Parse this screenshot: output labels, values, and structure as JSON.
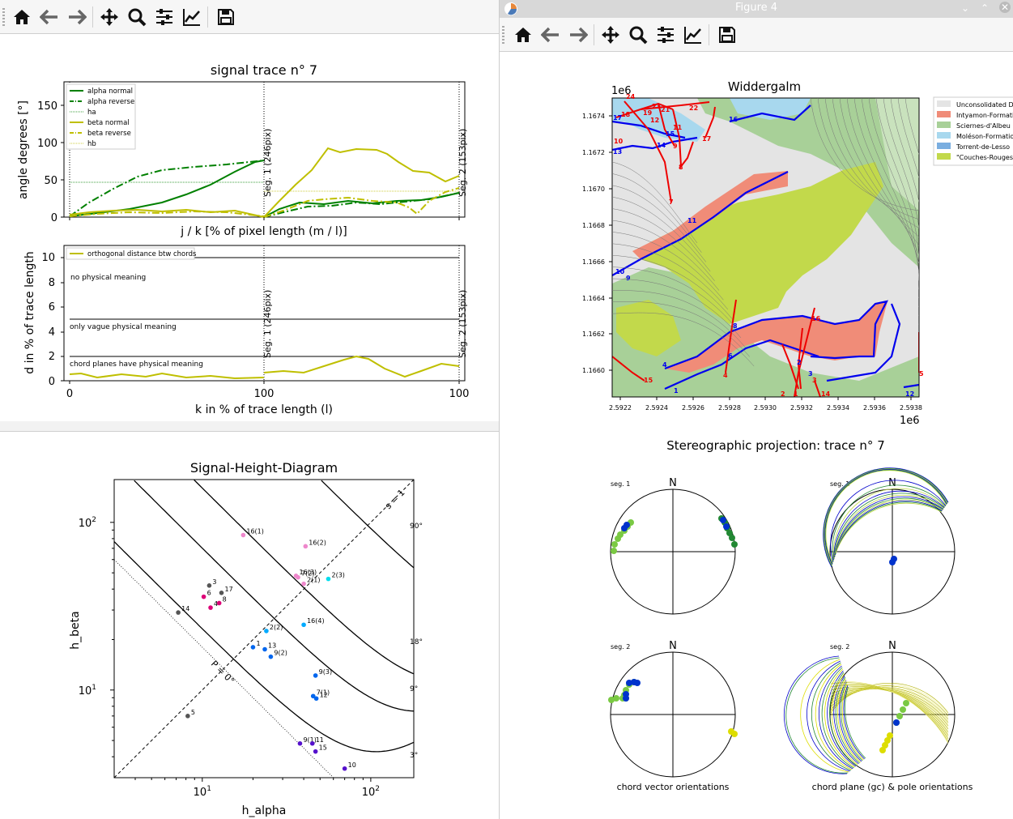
{
  "colors": {
    "green": "#008000",
    "yellow": "#bfbf00",
    "blue": "#0000ee",
    "red": "#ee0000",
    "salmon": "#f08c78",
    "lime": "#c2d94b",
    "grey": "#e4e4e4"
  },
  "window_left": {
    "toolbar": [
      "home-icon",
      "back-icon",
      "forward-icon",
      "pan-icon",
      "zoom-icon",
      "configure-icon",
      "edit-axis-icon",
      "save-icon"
    ],
    "top_plot": {
      "title": "signal trace n° 7",
      "ylabel": "angle degrees [°]",
      "xlabel": "j / k [% of pixel length (m / l)]",
      "yticks": [
        "150",
        "100",
        "50",
        "0"
      ],
      "seg1": "Seg. 1 (246pix)",
      "seg2": "Seg. 2 (153pix)",
      "legend": [
        "alpha normal",
        "alpha reverse",
        "ha",
        "beta normal",
        "beta reverse",
        "hb"
      ]
    },
    "bottom_plot": {
      "ylabel": "d in % of trace length",
      "xlabel": "k in % of trace length (l)",
      "yticks": [
        "10",
        "8",
        "6",
        "4",
        "2",
        "0"
      ],
      "xticks": [
        "0",
        "100",
        "100"
      ],
      "legend": "orthogonal distance btw chords",
      "band1": "no physical meaning",
      "band2": "only vague physical meaning",
      "band3": "chord planes have physical meaning",
      "seg1": "Seg. 1 (246pix)",
      "seg2": "Seg. 2 (153pix)"
    }
  },
  "window_bottom": {
    "title": "Signal-Height-Diagram",
    "xlabel": "h_alpha",
    "ylabel": "h_beta",
    "x_ticks": [
      "10^1",
      "10^2"
    ],
    "y_ticks": [
      "10^2",
      "10^1"
    ],
    "s_label": "s = 1",
    "p_label": "P = 0°",
    "curve_labels": [
      "90°",
      "18°",
      "9°",
      "3°"
    ],
    "chart_data": {
      "type": "scatter",
      "xscale": "log",
      "yscale": "log",
      "xlim": [
        3,
        180
      ],
      "ylim": [
        3,
        180
      ],
      "points": [
        {
          "label": "16(1)",
          "x": 17.5,
          "y": 84,
          "color": "#ee88cc"
        },
        {
          "label": "16(2)",
          "x": 41,
          "y": 72,
          "color": "#ee88cc"
        },
        {
          "label": "16(3)",
          "x": 36,
          "y": 48,
          "color": "#ee88cc"
        },
        {
          "label": "7(2)",
          "x": 37,
          "y": 47,
          "color": "#ee88cc"
        },
        {
          "label": "2(1)",
          "x": 40,
          "y": 43,
          "color": "#ee88cc"
        },
        {
          "label": "2(3)",
          "x": 56,
          "y": 46,
          "color": "#00ddee"
        },
        {
          "label": "3",
          "x": 11,
          "y": 42,
          "color": "#555555"
        },
        {
          "label": "17",
          "x": 13,
          "y": 38,
          "color": "#555555"
        },
        {
          "label": "6",
          "x": 10.2,
          "y": 36,
          "color": "#dd0077"
        },
        {
          "label": "8",
          "x": 12.6,
          "y": 33,
          "color": "#dd0077"
        },
        {
          "label": "4",
          "x": 11.2,
          "y": 31,
          "color": "#dd0077"
        },
        {
          "label": "14",
          "x": 7.2,
          "y": 29,
          "color": "#555555"
        },
        {
          "label": "16(4)",
          "x": 40,
          "y": 24.5,
          "color": "#00aaff"
        },
        {
          "label": "2(2)",
          "x": 24,
          "y": 22.5,
          "color": "#00aaff"
        },
        {
          "label": "1",
          "x": 20,
          "y": 18,
          "color": "#0066ee"
        },
        {
          "label": "13",
          "x": 23.5,
          "y": 17.5,
          "color": "#0066ee"
        },
        {
          "label": "9(2)",
          "x": 25.5,
          "y": 15.8,
          "color": "#0066ee"
        },
        {
          "label": "9(3)",
          "x": 47,
          "y": 12.2,
          "color": "#0066ee"
        },
        {
          "label": "7(1)",
          "x": 45.5,
          "y": 9.2,
          "color": "#0066ee"
        },
        {
          "label": "12",
          "x": 47.5,
          "y": 8.9,
          "color": "#0066ee"
        },
        {
          "label": "5",
          "x": 8.2,
          "y": 7,
          "color": "#555555"
        },
        {
          "label": "9(1)",
          "x": 38,
          "y": 4.8,
          "color": "#5511cc"
        },
        {
          "label": "11",
          "x": 45,
          "y": 4.8,
          "color": "#5511cc"
        },
        {
          "label": "15",
          "x": 47,
          "y": 4.3,
          "color": "#5511cc"
        },
        {
          "label": "10",
          "x": 70,
          "y": 3.4,
          "color": "#5511cc"
        }
      ]
    }
  },
  "window_right": {
    "title": "Figure 4",
    "toolbar": [
      "home-icon",
      "back-icon",
      "forward-icon",
      "pan-icon",
      "zoom-icon",
      "configure-icon",
      "edit-axis-icon",
      "save-icon"
    ],
    "map": {
      "title": "Widdergalm",
      "xoffset": "1e6",
      "yoffset": "1e6",
      "xticks": [
        "2.5922",
        "2.5924",
        "2.5926",
        "2.5928",
        "2.5930",
        "2.5932",
        "2.5934",
        "2.5936",
        "2.5938"
      ],
      "yticks": [
        "1.1674",
        "1.1672",
        "1.1670",
        "1.1668",
        "1.1666",
        "1.1664",
        "1.1662",
        "1.1660"
      ],
      "legend": [
        {
          "label": "Unconsolidated D",
          "color": "#e4e4e4"
        },
        {
          "label": "Intyamon-Formati",
          "color": "#f08c78"
        },
        {
          "label": "Sciernes-d'Albeu",
          "color": "#a8d098"
        },
        {
          "label": "Moléson-Formatio",
          "color": "#a8d8ee"
        },
        {
          "label": "Torrent-de-Lesso",
          "color": "#7aaee0"
        },
        {
          "label": "\"Couches-Rouges",
          "color": "#c2d94b"
        }
      ],
      "red_labels": [
        "24",
        "18",
        "19",
        "12",
        "23",
        "21",
        "22",
        "11",
        "10",
        "17",
        "9",
        "8",
        "7",
        "16",
        "14",
        "5",
        "15",
        "2",
        "1",
        "3",
        "14",
        "4"
      ],
      "blue_labels": [
        "17",
        "13",
        "16",
        "15",
        "14",
        "11",
        "10",
        "9",
        "8",
        "6",
        "4",
        "1",
        "2",
        "3",
        "12"
      ]
    },
    "stereo": {
      "title": "Stereographic projection: trace n° 7",
      "north": "N",
      "seg1": "seg. 1",
      "seg2": "seg. 2",
      "caption_left": "chord vector orientations",
      "caption_right": "chord plane (gc) & pole orientations"
    }
  }
}
